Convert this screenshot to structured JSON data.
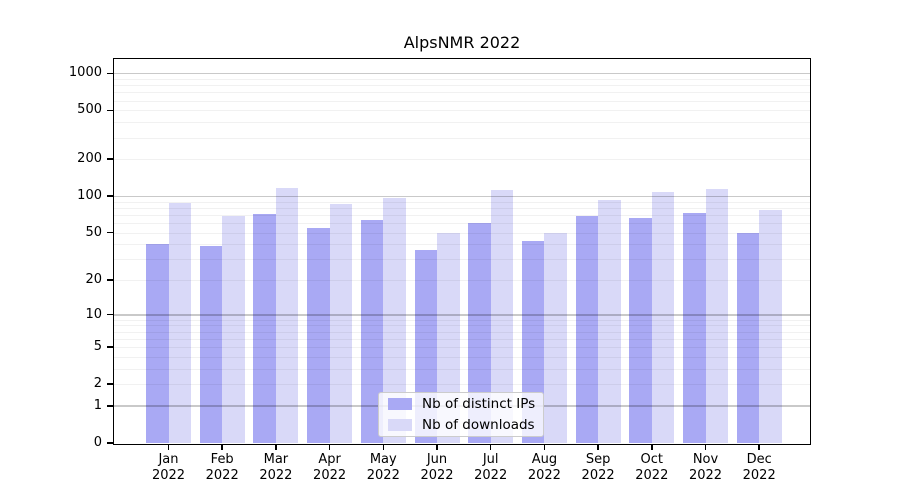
{
  "chart_data": {
    "type": "bar",
    "title": "AlpsNMR 2022",
    "categories": [
      "Jan",
      "Feb",
      "Mar",
      "Apr",
      "May",
      "Jun",
      "Jul",
      "Aug",
      "Sep",
      "Oct",
      "Nov",
      "Dec"
    ],
    "category_year": "2022",
    "series": [
      {
        "name": "Nb of distinct IPs",
        "color": "#a9a9f4",
        "values": [
          40,
          39,
          71,
          55,
          64,
          36,
          60,
          43,
          69,
          66,
          72,
          50
        ]
      },
      {
        "name": "Nb of downloads",
        "color": "#d9d9f8",
        "values": [
          87,
          69,
          116,
          86,
          97,
          50,
          112,
          50,
          92,
          107,
          114,
          77
        ]
      }
    ],
    "y_axis": {
      "scale": "log1p",
      "tick_labels": [
        "0",
        "1",
        "2",
        "5",
        "10",
        "20",
        "50",
        "100",
        "200",
        "500",
        "1000"
      ],
      "tick_values": [
        0,
        1,
        2,
        5,
        10,
        20,
        50,
        100,
        200,
        500,
        1000
      ]
    },
    "x_axis": {
      "tick_label_lines": 2
    },
    "legend": {
      "position": "lower center"
    },
    "grid": {
      "enabled": true,
      "major_values": [
        1,
        10,
        100,
        1000
      ],
      "major_color": "rgba(0,0,0,0.21)",
      "minor_color": "rgba(0,0,0,0.055)"
    }
  }
}
